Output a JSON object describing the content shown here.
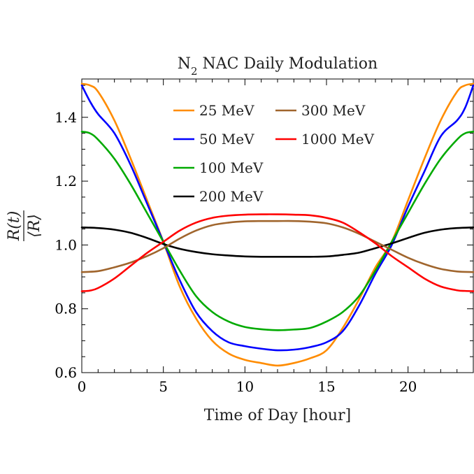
{
  "chart_data": {
    "type": "line",
    "title_main": "N",
    "title_sub": "2",
    "title_rest": " NAC Daily Modulation",
    "xlabel": "Time of Day [hour]",
    "ylabel_num": "R(t)",
    "ylabel_den": "⟨R⟩",
    "xlim": [
      0,
      24
    ],
    "ylim": [
      0.6,
      1.52
    ],
    "xticks": [
      0,
      5,
      10,
      15,
      20
    ],
    "xtick_labels": [
      "0",
      "5",
      "10",
      "15",
      "20"
    ],
    "yticks": [
      0.6,
      0.8,
      1.0,
      1.2,
      1.4
    ],
    "ytick_labels": [
      "0.6",
      "0.8",
      "1.0",
      "1.2",
      "1.4"
    ],
    "legend_position": "top-center",
    "series": [
      {
        "name": "25 MeV",
        "color": "#FF8C00",
        "x": [
          0,
          0.5,
          1,
          2,
          3,
          4,
          5,
          6,
          7,
          8,
          9,
          10,
          11,
          12,
          13,
          14,
          15,
          16,
          17,
          18,
          19,
          20,
          21,
          22,
          23,
          23.5,
          24
        ],
        "y": [
          1.505,
          1.5,
          1.48,
          1.39,
          1.27,
          1.14,
          1.01,
          0.87,
          0.77,
          0.7,
          0.66,
          0.64,
          0.63,
          0.622,
          0.63,
          0.645,
          0.67,
          0.74,
          0.83,
          0.93,
          1.01,
          1.14,
          1.27,
          1.39,
          1.48,
          1.5,
          1.505
        ]
      },
      {
        "name": "50 MeV",
        "color": "#0000FF",
        "x": [
          0,
          0.5,
          1,
          2,
          3,
          4,
          5,
          6,
          7,
          8,
          9,
          10,
          11,
          12,
          13,
          14,
          15,
          16,
          17,
          18,
          19,
          20,
          21,
          22,
          23,
          23.5,
          24
        ],
        "y": [
          1.5,
          1.45,
          1.41,
          1.35,
          1.25,
          1.13,
          1.01,
          0.89,
          0.79,
          0.73,
          0.695,
          0.683,
          0.675,
          0.67,
          0.672,
          0.68,
          0.695,
          0.73,
          0.81,
          0.91,
          1.0,
          1.12,
          1.23,
          1.34,
          1.39,
          1.43,
          1.5
        ]
      },
      {
        "name": "100 MeV",
        "color": "#00AA00",
        "x": [
          0,
          0.5,
          1,
          2,
          3,
          4,
          5,
          6,
          7,
          8,
          9,
          10,
          11,
          12,
          13,
          14,
          15,
          16,
          17,
          18,
          19,
          20,
          21,
          22,
          23,
          23.5,
          24
        ],
        "y": [
          1.355,
          1.35,
          1.33,
          1.27,
          1.19,
          1.1,
          1.01,
          0.92,
          0.84,
          0.79,
          0.76,
          0.743,
          0.736,
          0.733,
          0.735,
          0.74,
          0.76,
          0.79,
          0.84,
          0.92,
          1.01,
          1.1,
          1.19,
          1.27,
          1.33,
          1.35,
          1.355
        ]
      },
      {
        "name": "200 MeV",
        "color": "#000000",
        "x": [
          0,
          1,
          2,
          3,
          4,
          5,
          6,
          7,
          8,
          9,
          10,
          11,
          12,
          13,
          14,
          15,
          16,
          17,
          18,
          19,
          20,
          21,
          22,
          23,
          24
        ],
        "y": [
          1.055,
          1.053,
          1.048,
          1.038,
          1.022,
          1.003,
          0.988,
          0.978,
          0.971,
          0.967,
          0.964,
          0.963,
          0.963,
          0.963,
          0.963,
          0.964,
          0.969,
          0.976,
          0.99,
          1.005,
          1.022,
          1.038,
          1.048,
          1.053,
          1.055
        ]
      },
      {
        "name": "300 MeV",
        "color": "#A0652D",
        "x": [
          0,
          1,
          2,
          3,
          4,
          5,
          6,
          7,
          8,
          9,
          10,
          11,
          12,
          13,
          14,
          15,
          16,
          17,
          18,
          19,
          20,
          21,
          22,
          23,
          24
        ],
        "y": [
          0.915,
          0.918,
          0.93,
          0.945,
          0.965,
          0.99,
          1.02,
          1.045,
          1.062,
          1.07,
          1.074,
          1.075,
          1.075,
          1.075,
          1.073,
          1.068,
          1.055,
          1.035,
          1.01,
          0.985,
          0.96,
          0.94,
          0.925,
          0.917,
          0.915
        ]
      },
      {
        "name": "1000 MeV",
        "color": "#FF0000",
        "x": [
          0,
          0.5,
          1,
          2,
          3,
          4,
          5,
          6,
          7,
          8,
          9,
          10,
          11,
          12,
          13,
          14,
          15,
          16,
          17,
          18,
          19,
          20,
          21,
          22,
          23,
          23.5,
          24
        ],
        "y": [
          0.855,
          0.857,
          0.865,
          0.895,
          0.935,
          0.975,
          1.01,
          1.045,
          1.07,
          1.085,
          1.092,
          1.095,
          1.096,
          1.096,
          1.095,
          1.093,
          1.085,
          1.07,
          1.04,
          1.005,
          0.965,
          0.93,
          0.895,
          0.87,
          0.858,
          0.856,
          0.855
        ]
      }
    ]
  }
}
